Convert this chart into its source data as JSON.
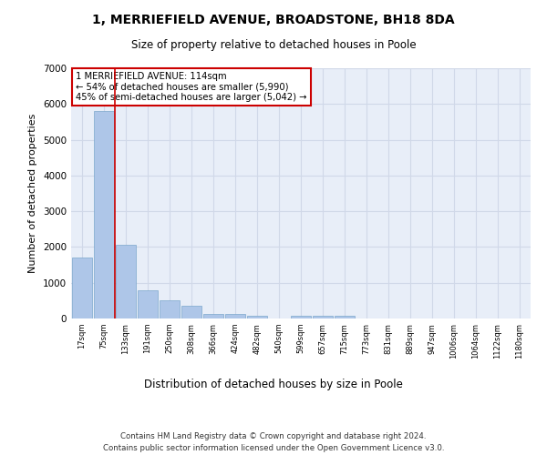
{
  "title1": "1, MERRIEFIELD AVENUE, BROADSTONE, BH18 8DA",
  "title2": "Size of property relative to detached houses in Poole",
  "xlabel": "Distribution of detached houses by size in Poole",
  "ylabel": "Number of detached properties",
  "categories": [
    "17sqm",
    "75sqm",
    "133sqm",
    "191sqm",
    "250sqm",
    "308sqm",
    "366sqm",
    "424sqm",
    "482sqm",
    "540sqm",
    "599sqm",
    "657sqm",
    "715sqm",
    "773sqm",
    "831sqm",
    "889sqm",
    "947sqm",
    "1006sqm",
    "1064sqm",
    "1122sqm",
    "1180sqm"
  ],
  "values": [
    1700,
    5800,
    2050,
    800,
    500,
    350,
    130,
    120,
    80,
    0,
    70,
    70,
    70,
    0,
    0,
    0,
    0,
    0,
    0,
    0,
    0
  ],
  "bar_color": "#aec6e8",
  "bar_edge_color": "#7ba7cc",
  "red_line_index": 2,
  "annotation_title": "1 MERRIEFIELD AVENUE: 114sqm",
  "annotation_line1": "← 54% of detached houses are smaller (5,990)",
  "annotation_line2": "45% of semi-detached houses are larger (5,042) →",
  "annotation_box_color": "#ffffff",
  "annotation_box_edge": "#cc0000",
  "ylim": [
    0,
    7000
  ],
  "yticks": [
    0,
    1000,
    2000,
    3000,
    4000,
    5000,
    6000,
    7000
  ],
  "grid_color": "#d0d8e8",
  "bg_color": "#e8eef8",
  "footer1": "Contains HM Land Registry data © Crown copyright and database right 2024.",
  "footer2": "Contains public sector information licensed under the Open Government Licence v3.0."
}
